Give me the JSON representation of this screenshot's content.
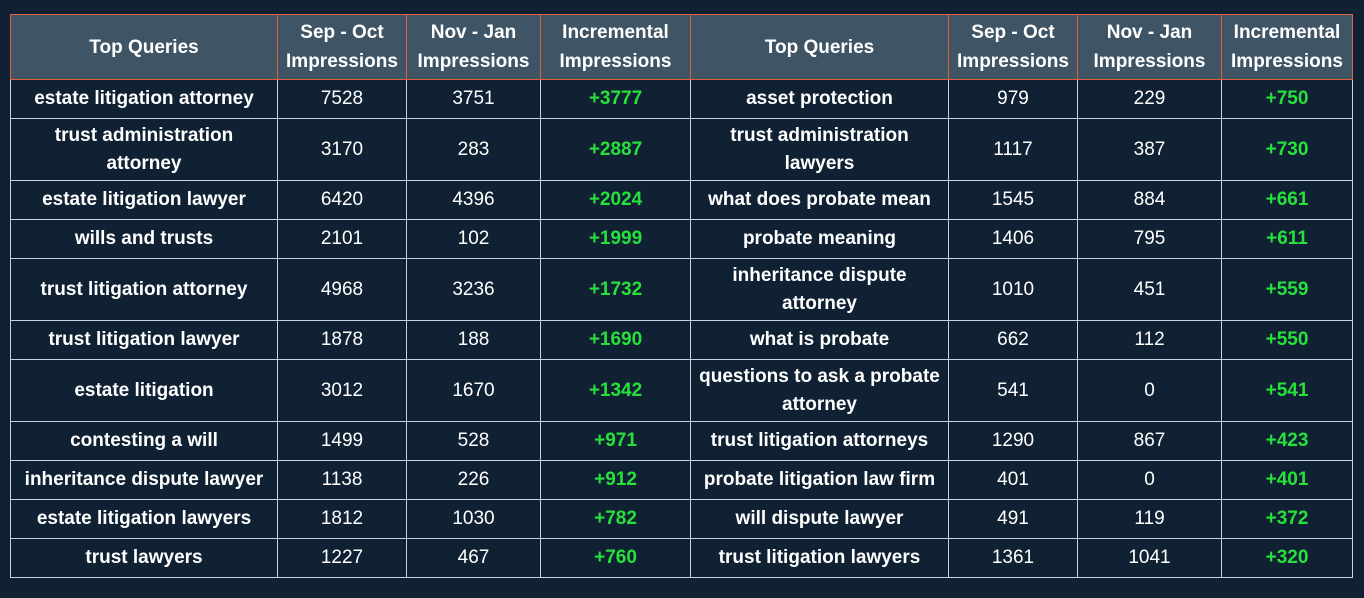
{
  "headers": {
    "query": "Top Queries",
    "sep_oct": "Sep - Oct Impressions",
    "nov_jan": "Nov - Jan Impressions",
    "incremental": "Incremental Impressions"
  },
  "rows": [
    {
      "left": {
        "q": "estate litigation attorney",
        "a": "7528",
        "b": "3751",
        "c": "+3777"
      },
      "right": {
        "q": "asset protection",
        "a": "979",
        "b": "229",
        "c": "+750"
      }
    },
    {
      "left": {
        "q": "trust administration attorney",
        "a": "3170",
        "b": "283",
        "c": "+2887"
      },
      "right": {
        "q": "trust administration lawyers",
        "a": "1117",
        "b": "387",
        "c": "+730"
      }
    },
    {
      "left": {
        "q": "estate litigation lawyer",
        "a": "6420",
        "b": "4396",
        "c": "+2024"
      },
      "right": {
        "q": "what does probate mean",
        "a": "1545",
        "b": "884",
        "c": "+661"
      }
    },
    {
      "left": {
        "q": "wills and trusts",
        "a": "2101",
        "b": "102",
        "c": "+1999"
      },
      "right": {
        "q": "probate meaning",
        "a": "1406",
        "b": "795",
        "c": "+611"
      }
    },
    {
      "left": {
        "q": "trust litigation attorney",
        "a": "4968",
        "b": "3236",
        "c": "+1732"
      },
      "right": {
        "q": "inheritance dispute attorney",
        "a": "1010",
        "b": "451",
        "c": "+559"
      }
    },
    {
      "left": {
        "q": "trust litigation lawyer",
        "a": "1878",
        "b": "188",
        "c": "+1690"
      },
      "right": {
        "q": "what is probate",
        "a": "662",
        "b": "112",
        "c": "+550"
      }
    },
    {
      "left": {
        "q": "estate litigation",
        "a": "3012",
        "b": "1670",
        "c": "+1342"
      },
      "right": {
        "q": "questions to ask a probate attorney",
        "a": "541",
        "b": "0",
        "c": "+541"
      }
    },
    {
      "left": {
        "q": "contesting a will",
        "a": "1499",
        "b": "528",
        "c": "+971"
      },
      "right": {
        "q": "trust litigation attorneys",
        "a": "1290",
        "b": "867",
        "c": "+423"
      }
    },
    {
      "left": {
        "q": "inheritance dispute lawyer",
        "a": "1138",
        "b": "226",
        "c": "+912"
      },
      "right": {
        "q": "probate litigation law firm",
        "a": "401",
        "b": "0",
        "c": "+401"
      }
    },
    {
      "left": {
        "q": "estate litigation lawyers",
        "a": "1812",
        "b": "1030",
        "c": "+782"
      },
      "right": {
        "q": "will dispute lawyer",
        "a": "491",
        "b": "119",
        "c": "+372"
      }
    },
    {
      "left": {
        "q": "trust lawyers",
        "a": "1227",
        "b": "467",
        "c": "+760"
      },
      "right": {
        "q": "trust litigation lawyers",
        "a": "1361",
        "b": "1041",
        "c": "+320"
      }
    }
  ],
  "colors": {
    "background": "#0f2132",
    "header_bg": "#3f5566",
    "header_border": "#e0623a",
    "incremental_text": "#27e03c"
  }
}
